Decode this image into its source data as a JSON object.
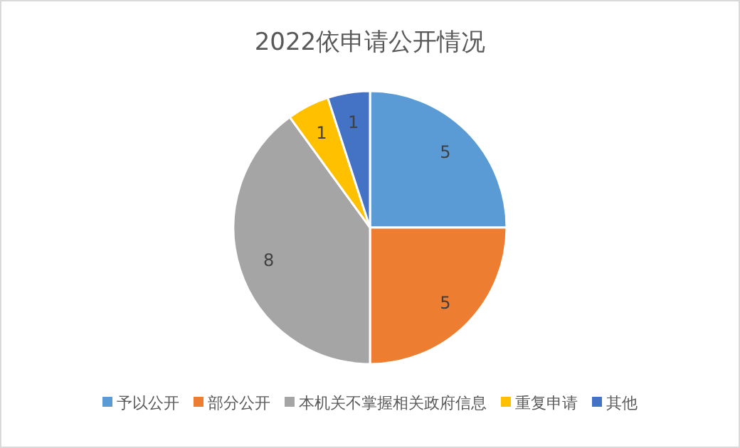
{
  "chart_data": {
    "type": "pie",
    "title": "2022依申请公开情况",
    "categories": [
      "予以公开",
      "部分公开",
      "本机关不掌握相关政府信息",
      "重复申请",
      "其他"
    ],
    "values": [
      5,
      5,
      8,
      1,
      1
    ],
    "colors": [
      "#5b9bd5",
      "#ed7d31",
      "#a5a5a5",
      "#ffc000",
      "#4472c4"
    ],
    "data_labels": true,
    "legend": "bottom"
  }
}
